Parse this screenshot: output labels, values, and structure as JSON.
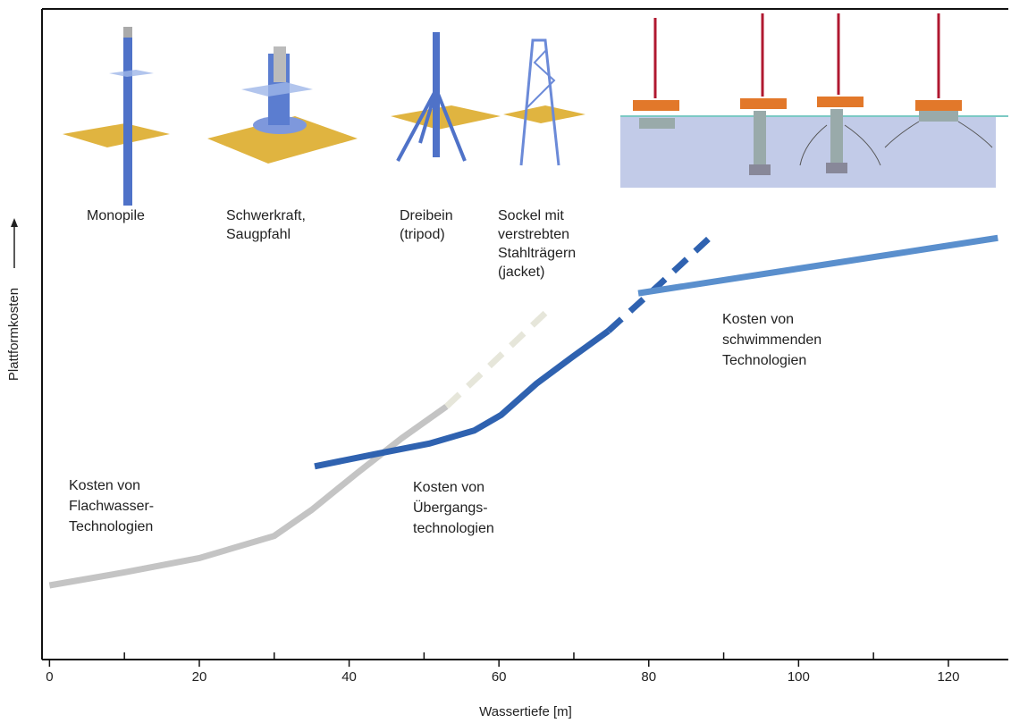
{
  "chart_data": {
    "type": "line",
    "x_label": "Wassertiefe [m]",
    "y_label": "Plattformkosten",
    "xlim": [
      -1,
      128
    ],
    "ylim": [
      0,
      100
    ],
    "xticks": [
      0,
      20,
      40,
      60,
      80,
      100,
      120
    ],
    "xminor": [
      10,
      30,
      50,
      70,
      90,
      110
    ],
    "series": [
      {
        "color": "#c4c4c4",
        "dashed": false,
        "x": [
          0,
          10,
          20,
          30,
          35,
          41,
          47,
          53
        ],
        "values": [
          11.4,
          13.4,
          15.6,
          19,
          23,
          28.6,
          34,
          38.9
        ]
      },
      {
        "color": "#e6e6da",
        "dashed": true,
        "x": [
          53,
          60,
          66.5
        ],
        "values": [
          38.9,
          46.5,
          53.6
        ]
      },
      {
        "color": "#2f62b0",
        "dashed": false,
        "x": [
          35.4,
          43.6,
          50.7,
          56.7,
          60.3,
          65,
          69.8,
          74.6
        ],
        "values": [
          29.7,
          31.6,
          33.2,
          35.2,
          37.6,
          42.4,
          46.5,
          50.5
        ]
      },
      {
        "color": "#2f62b0",
        "dashed": true,
        "x": [
          74.6,
          81.2,
          88.3
        ],
        "values": [
          50.5,
          57.4,
          65
        ]
      },
      {
        "color": "#5a8fcd",
        "dashed": false,
        "x": [
          78.6,
          126.6
        ],
        "values": [
          56.3,
          64.8
        ]
      }
    ],
    "foundations": [
      [
        "Monopile"
      ],
      [
        "Schwerkraft,",
        "Saugpfahl"
      ],
      [
        "Dreibein",
        "(tripod)"
      ],
      [
        "Sockel mit",
        "verstrebten",
        "Stahlträgern",
        "(jacket)"
      ]
    ],
    "annotations": [
      [
        "Kosten von",
        "Flachwasser-",
        "Technologien"
      ],
      [
        "Kosten von",
        "Übergangs-",
        "technologien"
      ],
      [
        "Kosten von",
        "schwimmenden",
        "Technologien"
      ]
    ]
  }
}
